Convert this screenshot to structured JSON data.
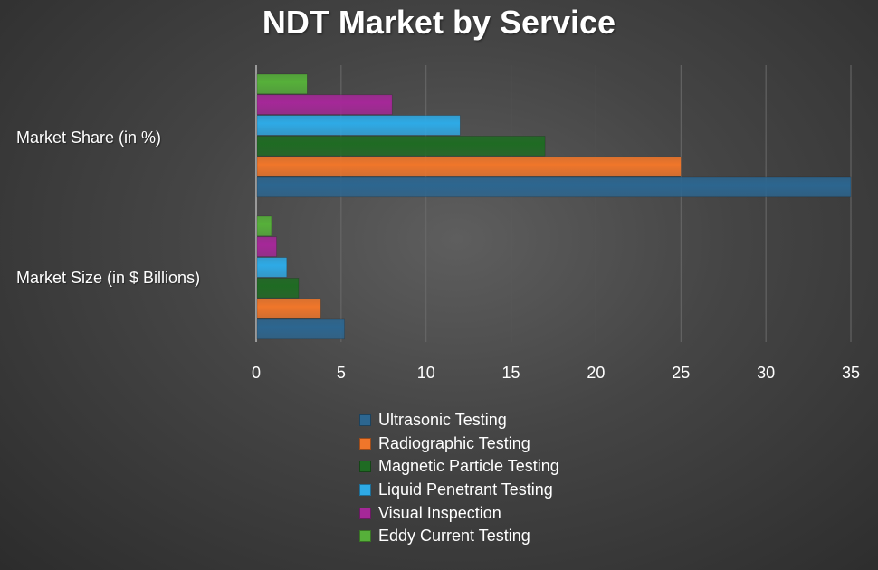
{
  "chart_data": {
    "type": "bar",
    "orientation": "horizontal",
    "title": "NDT Market by Service",
    "categories": [
      "Market Share (in %)",
      "Market Size (in $ Billions)"
    ],
    "series": [
      {
        "name": "Ultrasonic Testing",
        "color": "#2c6690",
        "values": [
          35,
          5.2
        ]
      },
      {
        "name": "Radiographic Testing",
        "color": "#f0762a",
        "values": [
          25,
          3.8
        ]
      },
      {
        "name": "Magnetic Particle Testing",
        "color": "#1f6b23",
        "values": [
          17,
          2.5
        ]
      },
      {
        "name": "Liquid Penetrant Testing",
        "color": "#2eaae6",
        "values": [
          12,
          1.8
        ]
      },
      {
        "name": "Visual Inspection",
        "color": "#a52898",
        "values": [
          8,
          1.2
        ]
      },
      {
        "name": "Eddy Current Testing",
        "color": "#56b03a",
        "values": [
          3,
          0.9
        ]
      }
    ],
    "xlim": [
      0,
      35
    ],
    "xticks": [
      0,
      5,
      10,
      15,
      20,
      25,
      30,
      35
    ],
    "grid": true,
    "legend_position": "bottom"
  }
}
